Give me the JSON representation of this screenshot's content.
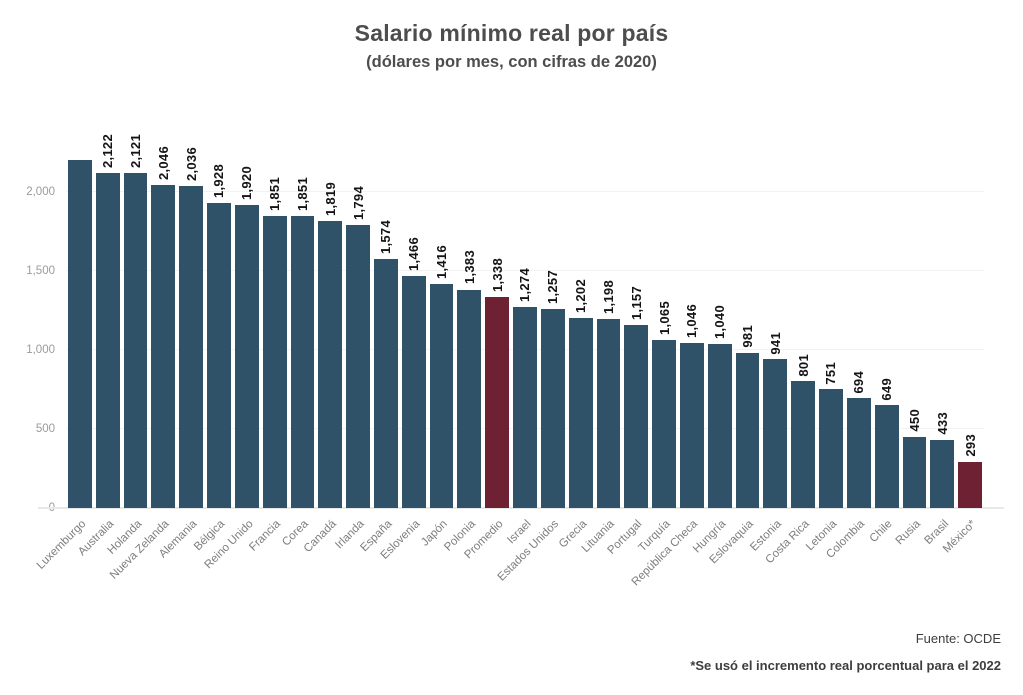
{
  "header": {
    "title": "Salario mínimo real por país",
    "subtitle": "(dólares por mes, con cifras de 2020)"
  },
  "footer": {
    "source": "Fuente: OCDE",
    "footnote": "*Se usó el incremento real porcentual para el 2022"
  },
  "colors": {
    "bar": "#2f5269",
    "highlight": "#6f2134",
    "title_text": "#4d4d4d",
    "value_text": "#141414",
    "axis_tick_text": "#9b9b9b",
    "category_text": "#7d7d7d",
    "gridline": "#f2f2f2",
    "baseline": "#e8e8e8"
  },
  "chart_data": {
    "type": "bar",
    "title": "Salario mínimo real por país",
    "subtitle": "(dólares por mes, con cifras de 2020)",
    "xlabel": "",
    "ylabel": "",
    "ylim": [
      0,
      2200
    ],
    "yticks": [
      0,
      500,
      1000,
      1500,
      2000
    ],
    "ytick_labels": [
      "0",
      "500",
      "1,000",
      "1,500",
      "2,000"
    ],
    "grid": "horizontal-faint",
    "legend": "none",
    "categories": [
      "Luxemburgo",
      "Australia",
      "Holanda",
      "Nueva Zelanda",
      "Alemania",
      "Bélgica",
      "Reino Unido",
      "Francia",
      "Corea",
      "Canadá",
      "Irlanda",
      "España",
      "Eslovenia",
      "Japón",
      "Polonia",
      "Promedio",
      "Israel",
      "Estados Unidos",
      "Grecia",
      "Lituania",
      "Portugal",
      "Turquía",
      "República Checa",
      "Hungría",
      "Eslovaquia",
      "Estonia",
      "Costa Rica",
      "Letonia",
      "Colombia",
      "Chile",
      "Rusia",
      "Brasil",
      "México*"
    ],
    "values": [
      2200,
      2122,
      2121,
      2046,
      2036,
      1928,
      1920,
      1851,
      1851,
      1819,
      1794,
      1574,
      1466,
      1416,
      1383,
      1338,
      1274,
      1257,
      1202,
      1198,
      1157,
      1065,
      1046,
      1040,
      981,
      941,
      801,
      751,
      694,
      649,
      450,
      433,
      293
    ],
    "value_labels": [
      "",
      "2,122",
      "2,121",
      "2,046",
      "2,036",
      "1,928",
      "1,920",
      "1,851",
      "1,851",
      "1,819",
      "1,794",
      "1,574",
      "1,466",
      "1,416",
      "1,383",
      "1,338",
      "1,274",
      "1,257",
      "1,202",
      "1,198",
      "1,157",
      "1,065",
      "1,046",
      "1,040",
      "981",
      "941",
      "801",
      "751",
      "694",
      "649",
      "450",
      "433",
      "293"
    ],
    "highlight_indices": [
      15,
      32
    ],
    "notes": "Luxemburgo bar has no visible value label; height estimated ~2,200. Bars for Promedio and México* are dark red, all others dark teal."
  }
}
